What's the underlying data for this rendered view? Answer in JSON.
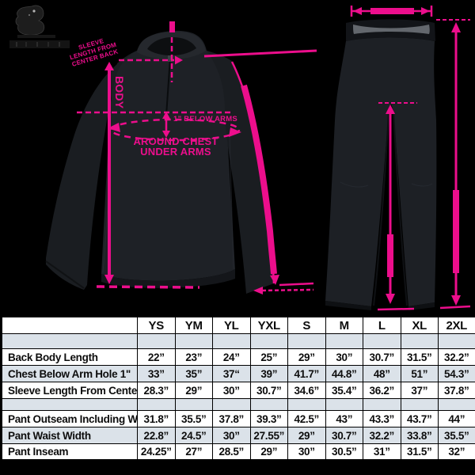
{
  "diagram": {
    "accent_color": "#EC0E8C",
    "row_alt_color": "#DBE2E9",
    "jacket_labels": {
      "body": "BODY",
      "below_arms": "1” BELOW ARMS",
      "around_chest": "AROUND CHEST",
      "under_arms": "UNDER ARMS",
      "sleeve_note_1": "SLEEVE",
      "sleeve_note_2": "LENGTH FROM",
      "sleeve_note_3": "CENTER BACK"
    }
  },
  "size_chart": {
    "corner_label": "",
    "columns": [
      "YS",
      "YM",
      "YL",
      "YXL",
      "S",
      "M",
      "L",
      "XL",
      "2XL"
    ],
    "sections": [
      {
        "spacer_height": 19,
        "rows": [
          {
            "label": "Back Body Length",
            "values": [
              "22”",
              "23”",
              "24”",
              "25”",
              "29”",
              "30”",
              "30.7”",
              "31.5”",
              "32.2”"
            ]
          },
          {
            "label": "Chest Below Arm Hole 1\"",
            "values": [
              "33”",
              "35”",
              "37“",
              "39”",
              "41.7”",
              "44.8”",
              "48”",
              "51”",
              "54.3”"
            ]
          },
          {
            "label": "Sleeve Length From Center Back",
            "values": [
              "28.3”",
              "29”",
              "30”",
              "30.7”",
              "34.6”",
              "35.4”",
              "36.2”",
              "37”",
              "37.8”"
            ]
          }
        ]
      },
      {
        "spacer_height": 15,
        "rows": [
          {
            "label": "Pant Outseam Including Waist",
            "values": [
              "31.8”",
              "35.5”",
              "37.8”",
              "39.3”",
              "42.5”",
              "43”",
              "43.3”",
              "43.7”",
              "44”"
            ]
          },
          {
            "label": "Pant Waist Width",
            "values": [
              "22.8”",
              "24.5”",
              "30”",
              "27.55”",
              "29”",
              "30.7”",
              "32.2”",
              "33.8”",
              "35.5”"
            ]
          },
          {
            "label": "Pant Inseam",
            "values": [
              "24.25”",
              "27”",
              "28.5”",
              "29”",
              "30”",
              "30.5”",
              "31”",
              "31.5”",
              "32”"
            ]
          }
        ]
      }
    ]
  }
}
